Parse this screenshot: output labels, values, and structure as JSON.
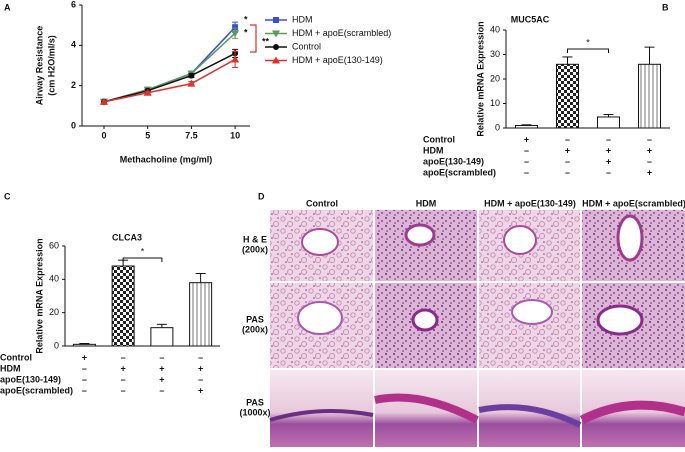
{
  "panel_labels": [
    "A",
    "B",
    "C",
    "D"
  ],
  "chart_data": [
    {
      "type": "line",
      "x_label": "Methacholine (mg/ml)",
      "y_label": [
        "Airway Resistance",
        "(cm H2O/ml/s)"
      ],
      "categories": [
        "0",
        "5",
        "7.5",
        "10"
      ],
      "ylim": [
        0,
        6
      ],
      "yticks": [
        0,
        2,
        4,
        6
      ],
      "series": [
        {
          "name": "HDM",
          "color": "#3a4fd8",
          "marker": "square",
          "values": [
            1.2,
            1.8,
            2.6,
            4.9
          ],
          "errors": [
            0.05,
            0.06,
            0.1,
            0.25
          ]
        },
        {
          "name": "HDM + apoE(scrambled)",
          "color": "#5a9a5a",
          "marker": "tri-down",
          "values": [
            1.2,
            1.8,
            2.6,
            4.6
          ],
          "errors": [
            0.05,
            0.06,
            0.1,
            0.25
          ]
        },
        {
          "name": "Control",
          "color": "#111111",
          "marker": "circle",
          "values": [
            1.2,
            1.75,
            2.5,
            3.6
          ],
          "errors": [
            0.05,
            0.06,
            0.1,
            0.2
          ]
        },
        {
          "name": "HDM + apoE(130-149)",
          "color": "#e0302a",
          "marker": "tri-up",
          "values": [
            1.2,
            1.65,
            2.1,
            3.3
          ],
          "errors": [
            0.05,
            0.06,
            0.1,
            0.4
          ]
        }
      ],
      "annotations": [
        {
          "text": "*",
          "color": "#3a4fd8"
        },
        {
          "text": "*",
          "color": "#5a9a5a"
        },
        {
          "text": "**",
          "color": "#e0302a"
        }
      ]
    },
    {
      "type": "bar",
      "title": "MUC5AC",
      "y_label": "Relative mRNA Expression",
      "ylim": [
        0,
        40
      ],
      "yticks": [
        0,
        10,
        20,
        30,
        40
      ],
      "values": [
        1,
        26,
        4.5,
        26
      ],
      "errors": [
        0.3,
        3,
        1,
        7
      ],
      "patterns": [
        "none",
        "checker",
        "none",
        "stripes"
      ],
      "significance": "*",
      "table": {
        "row_labels": [
          "Control",
          "HDM",
          "apoE(130-149)",
          "apoE(scrambled)"
        ],
        "signs": [
          [
            "+",
            "–",
            "–",
            "–"
          ],
          [
            "–",
            "+",
            "+",
            "+"
          ],
          [
            "–",
            "–",
            "+",
            "–"
          ],
          [
            "–",
            "–",
            "–",
            "+"
          ]
        ]
      }
    },
    {
      "type": "bar",
      "title": "CLCA3",
      "y_label": "Relative mRNA Expression",
      "ylim": [
        0,
        60
      ],
      "yticks": [
        0,
        20,
        40,
        60
      ],
      "values": [
        1,
        48,
        11,
        38
      ],
      "errors": [
        0.5,
        3.5,
        2,
        5.5
      ],
      "patterns": [
        "none",
        "checker",
        "none",
        "stripes"
      ],
      "significance": "*",
      "table": {
        "row_labels": [
          "Control",
          "HDM",
          "apoE(130-149)",
          "apoE(scrambled)"
        ],
        "signs": [
          [
            "+",
            "–",
            "–",
            "–"
          ],
          [
            "–",
            "+",
            "+",
            "+"
          ],
          [
            "–",
            "–",
            "+",
            "–"
          ],
          [
            "–",
            "–",
            "–",
            "+"
          ]
        ]
      }
    }
  ],
  "panel_d": {
    "columns": [
      "Control",
      "HDM",
      "HDM + apoE(130-149)",
      "HDM + apoE(scrambled)"
    ],
    "rows": [
      [
        "H & E",
        "(200x)"
      ],
      [
        "PAS",
        "(200x)"
      ],
      [
        "PAS",
        "(1000x)"
      ]
    ]
  }
}
